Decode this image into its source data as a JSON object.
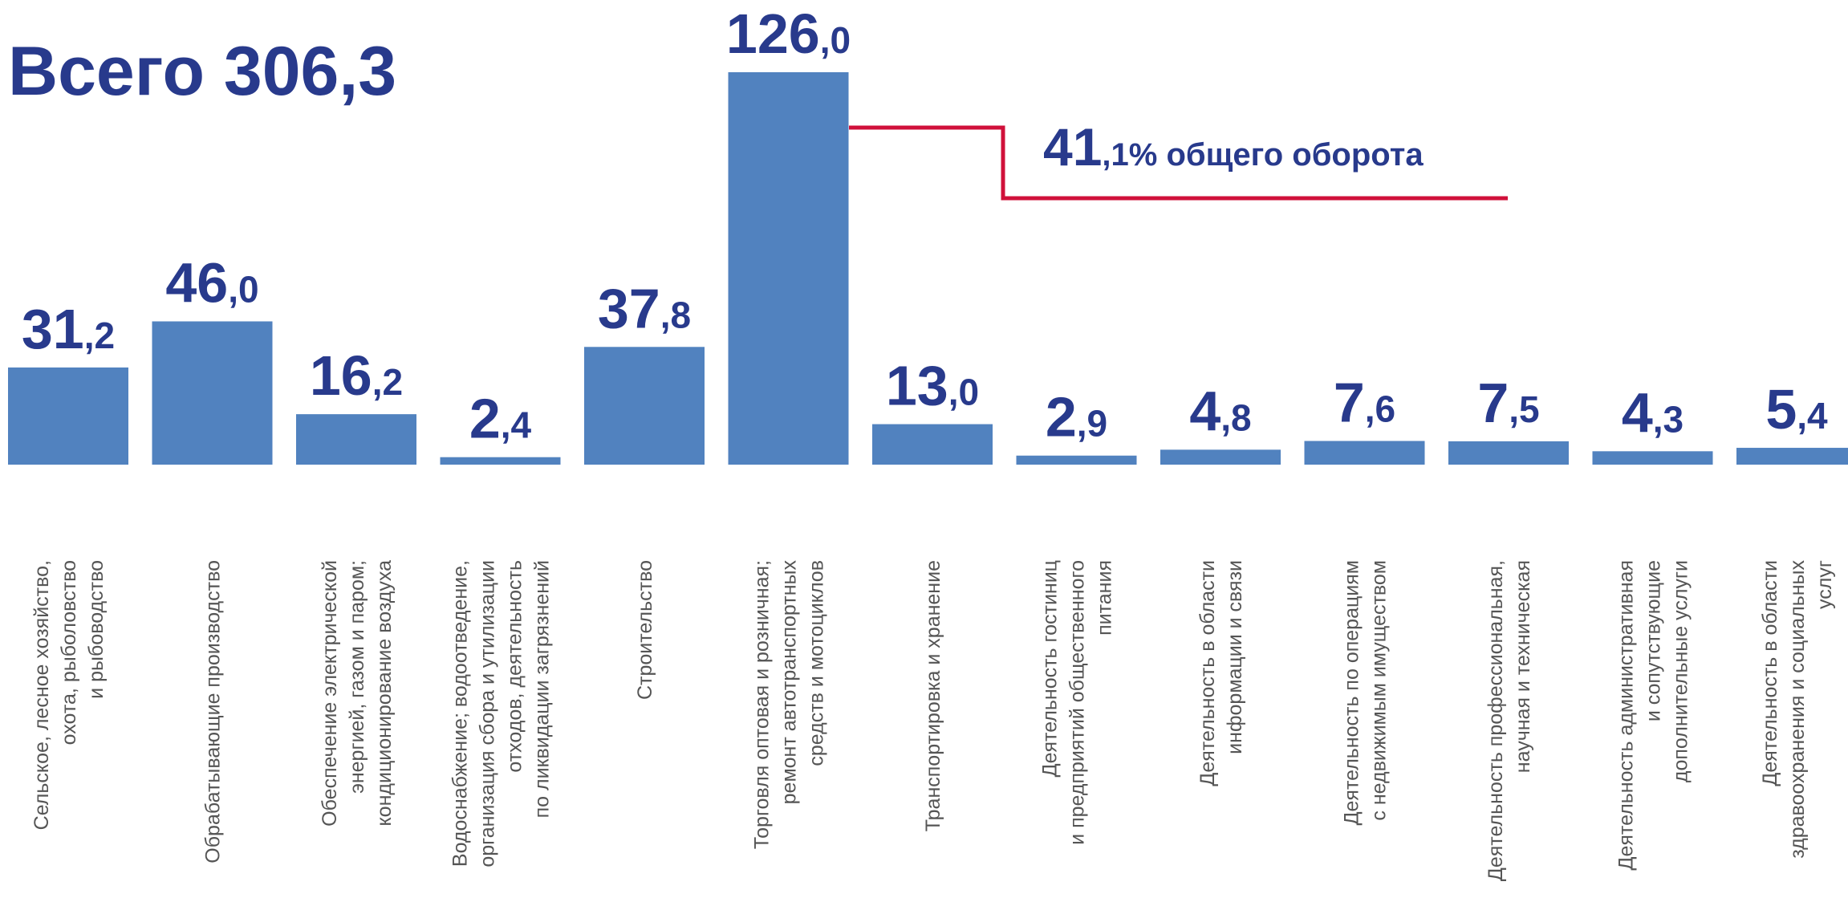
{
  "chart_data": {
    "type": "bar",
    "title": "Всего 306,3",
    "annotation": "41,1% общего оборота",
    "color": "#5182bf",
    "categories": [
      "Сельское, лесное хозяйство,\nохота, рыболовство\nи рыбоводство",
      "Обрабатывающие производство",
      "Обеспечение электрической\nэнергией, газом и паром;\nкондиционирование воздуха",
      "Водоснабжение; водоотведение,\nорганизация сбора и утилизации\nотходов, деятельность\nпо ликвидации загрязнений",
      "Строительство",
      "Торговля оптовая и розничная;\nремонт автотранспортных\nсредств и мотоциклов",
      "Транспортировка и хранение",
      "Деятельность гостиниц\nи предприятий общественного\nпитания",
      "Деятельность в области\nинформации и связи",
      "Деятельность по операциям\nс недвижимым имуществом",
      "Деятельность профессиональная,\nнаучная и техническая",
      "Деятельность административная\nи сопутствующие\nдополнительные услуги",
      "Деятельность в области\nздравоохранения и социальных\nуслуг"
    ],
    "values": [
      31.2,
      46.0,
      16.2,
      2.4,
      37.8,
      126.0,
      13.0,
      2.9,
      4.8,
      7.6,
      7.5,
      4.3,
      5.4
    ],
    "value_labels": [
      "31,2",
      "46,0",
      "16,2",
      "2,4",
      "37,8",
      "126,0",
      "13,0",
      "2,9",
      "4,8",
      "7,6",
      "7,5",
      "4,3",
      "5,4"
    ]
  }
}
